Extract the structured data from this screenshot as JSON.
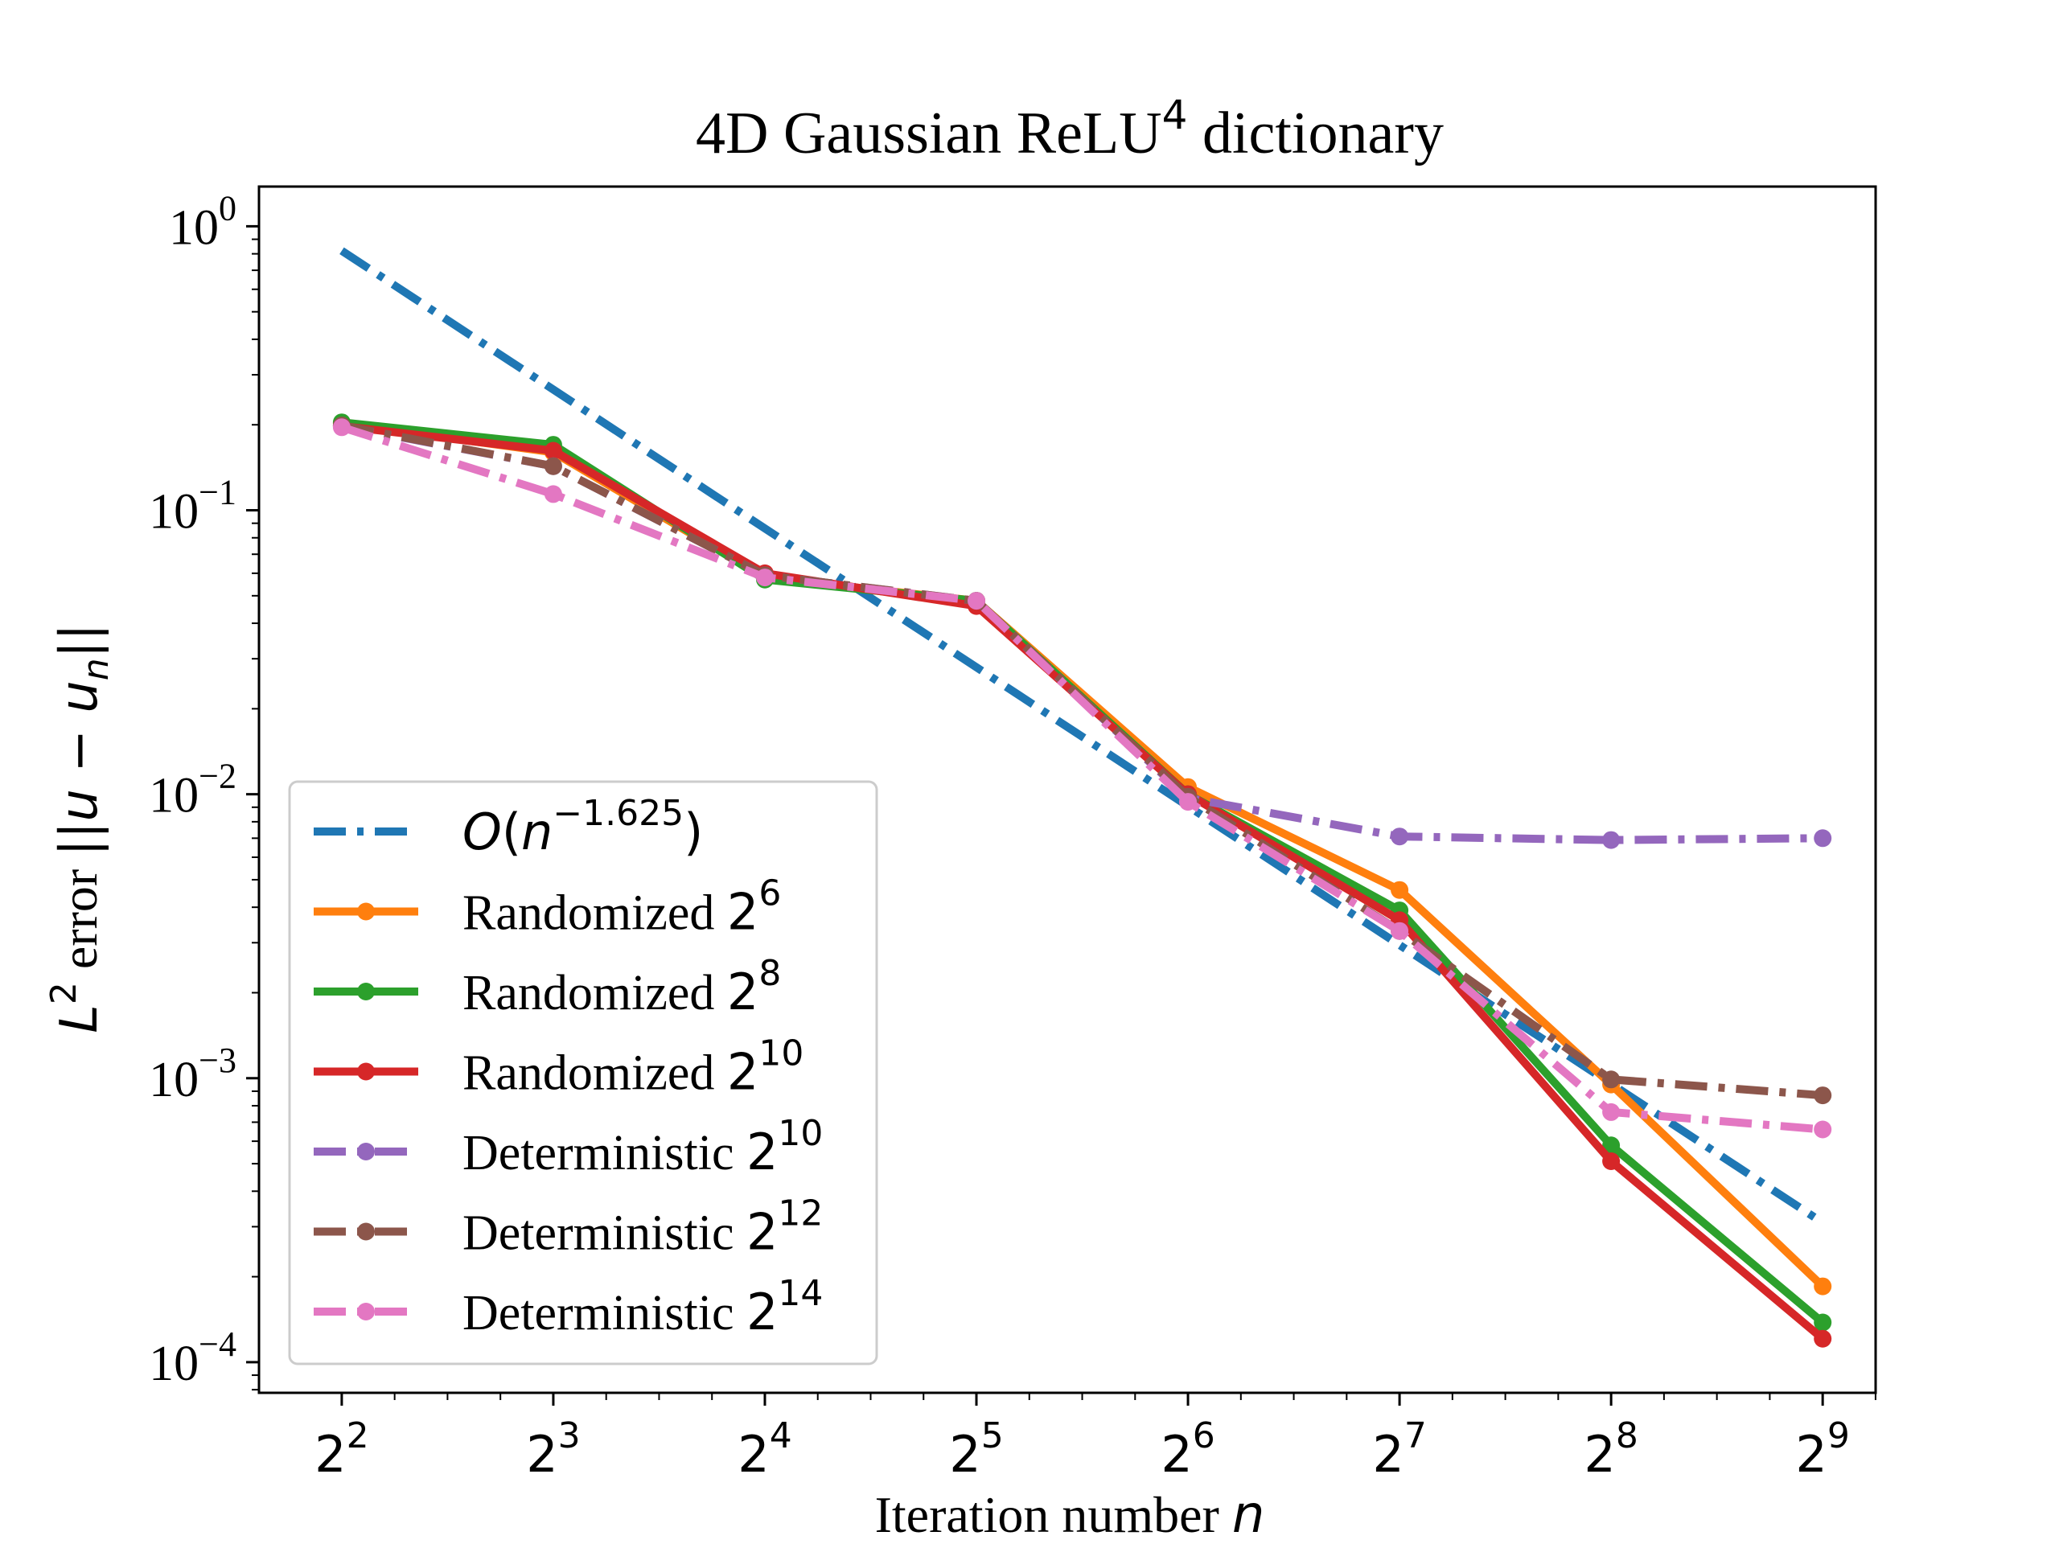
{
  "chart_data": {
    "type": "line",
    "title": {
      "main": "4D Gaussian   ReLU",
      "superscript": "4",
      "suffix": " dictionary"
    },
    "xlabel": {
      "text": "Iteration number ",
      "var": "n"
    },
    "ylabel": {
      "text": " error ",
      "L": "L",
      "L_sup": "2",
      "norm": "||u − u",
      "norm_sub": "n",
      "norm_end": "||"
    },
    "x_scale": "log2",
    "y_scale": "log10",
    "xlim": [
      3.05,
      609
    ],
    "ylim": [
      7.8e-05,
      1.38
    ],
    "x_ticks": [
      {
        "value": 4,
        "base": "2",
        "exp": "2"
      },
      {
        "value": 8,
        "base": "2",
        "exp": "3"
      },
      {
        "value": 16,
        "base": "2",
        "exp": "4"
      },
      {
        "value": 32,
        "base": "2",
        "exp": "5"
      },
      {
        "value": 64,
        "base": "2",
        "exp": "6"
      },
      {
        "value": 128,
        "base": "2",
        "exp": "7"
      },
      {
        "value": 256,
        "base": "2",
        "exp": "8"
      },
      {
        "value": 512,
        "base": "2",
        "exp": "9"
      }
    ],
    "y_ticks": [
      {
        "value": 1,
        "base": "10",
        "exp": "0"
      },
      {
        "value": 0.1,
        "base": "10",
        "exp": "−1"
      },
      {
        "value": 0.01,
        "base": "10",
        "exp": "−2"
      },
      {
        "value": 0.001,
        "base": "10",
        "exp": "−3"
      },
      {
        "value": 0.0001,
        "base": "10",
        "exp": "−4"
      }
    ],
    "grid": false,
    "legend_position": "lower-left",
    "x": [
      4,
      8,
      16,
      32,
      64,
      128,
      256,
      512
    ],
    "series": [
      {
        "name": "O(n",
        "name_sup": "−1.625",
        "name_end": ")",
        "name_style": "math",
        "color": "#1f77b4",
        "dash": "dashdot",
        "markers": false,
        "x": [
          4,
          512
        ],
        "values": [
          0.82,
          0.00031
        ]
      },
      {
        "name": "Randomized 2",
        "name_sup": "6",
        "color": "#ff7f0e",
        "dash": "solid",
        "markers": true,
        "values": [
          0.202,
          0.16,
          0.058,
          0.048,
          0.0106,
          0.0046,
          0.00095,
          0.000185
        ]
      },
      {
        "name": "Randomized 2",
        "name_sup": "8",
        "color": "#2ca02c",
        "dash": "solid",
        "markers": true,
        "values": [
          0.204,
          0.17,
          0.057,
          0.048,
          0.01,
          0.0039,
          0.00058,
          0.000138
        ]
      },
      {
        "name": "Randomized 2",
        "name_sup": "10",
        "color": "#d62728",
        "dash": "solid",
        "markers": true,
        "values": [
          0.198,
          0.162,
          0.06,
          0.046,
          0.01,
          0.0036,
          0.00051,
          0.000121
        ]
      },
      {
        "name": "Deterministic 2",
        "name_sup": "10",
        "color": "#9467bd",
        "dash": "dashdot",
        "markers": true,
        "values": [
          0.198,
          0.143,
          0.059,
          0.048,
          0.0097,
          0.0071,
          0.0069,
          0.007
        ]
      },
      {
        "name": "Deterministic 2",
        "name_sup": "12",
        "color": "#8c564b",
        "dash": "dashdot",
        "markers": true,
        "values": [
          0.199,
          0.143,
          0.059,
          0.048,
          0.0098,
          0.0033,
          0.00099,
          0.00087
        ]
      },
      {
        "name": "Deterministic 2",
        "name_sup": "14",
        "color": "#e377c2",
        "dash": "dashdot",
        "markers": true,
        "values": [
          0.196,
          0.114,
          0.058,
          0.048,
          0.0094,
          0.0033,
          0.00076,
          0.00066
        ]
      }
    ]
  }
}
